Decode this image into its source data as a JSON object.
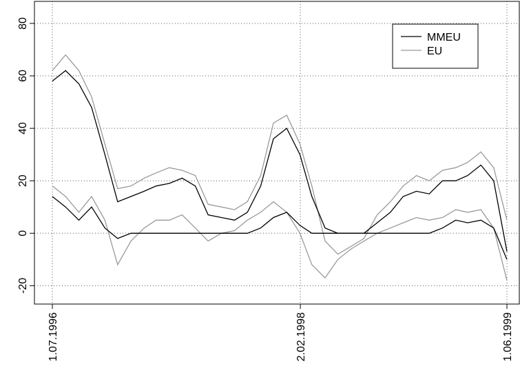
{
  "chart_data": {
    "type": "band-line",
    "x": [
      "01.07.1996",
      "01.08.1996",
      "01.09.1996",
      "01.10.1996",
      "01.11.1996",
      "01.12.1996",
      "01.01.1997",
      "01.02.1997",
      "01.03.1997",
      "01.04.1997",
      "01.05.1997",
      "01.06.1997",
      "01.07.1997",
      "01.08.1997",
      "01.09.1997",
      "01.10.1997",
      "01.11.1997",
      "01.12.1997",
      "01.01.1998",
      "01.02.1998",
      "01.03.1998",
      "01.04.1998",
      "01.05.1998",
      "01.06.1998",
      "01.07.1998",
      "01.08.1998",
      "01.09.1998",
      "01.10.1998",
      "01.11.1998",
      "01.12.1998",
      "01.01.1999",
      "01.02.1999",
      "01.03.1999",
      "01.04.1999",
      "01.05.1999",
      "01.06.1999"
    ],
    "series": [
      {
        "name": "MMEU",
        "color": "#000000",
        "upper": [
          58,
          62,
          57,
          48,
          30,
          12,
          14,
          16,
          18,
          19,
          21,
          18,
          7,
          6,
          5,
          8,
          18,
          36,
          40,
          30,
          14,
          2,
          0,
          0,
          0,
          4,
          8,
          14,
          16,
          15,
          20,
          20,
          22,
          26,
          20,
          -7
        ],
        "lower": [
          14,
          10,
          5,
          10,
          2,
          -2,
          0,
          0,
          0,
          0,
          0,
          0,
          0,
          0,
          0,
          0,
          2,
          6,
          8,
          3,
          0,
          0,
          0,
          0,
          0,
          0,
          0,
          0,
          0,
          0,
          2,
          5,
          4,
          5,
          2,
          -10
        ]
      },
      {
        "name": "EU",
        "color": "#999999",
        "upper": [
          62,
          68,
          62,
          52,
          34,
          17,
          18,
          21,
          23,
          25,
          24,
          22,
          11,
          10,
          9,
          12,
          22,
          42,
          45,
          34,
          18,
          -3,
          -8,
          -5,
          -2,
          7,
          12,
          18,
          22,
          20,
          24,
          25,
          27,
          31,
          25,
          5
        ],
        "lower": [
          18,
          14,
          8,
          14,
          5,
          -12,
          -3,
          2,
          5,
          5,
          7,
          2,
          -3,
          0,
          1,
          5,
          8,
          12,
          8,
          0,
          -12,
          -17,
          -10,
          -6,
          -3,
          0,
          2,
          4,
          6,
          5,
          6,
          9,
          8,
          9,
          2,
          -18
        ]
      }
    ],
    "xlim": [
      "20.05.1996",
      "30.06.1999"
    ],
    "xticks": [
      {
        "value": "01.07.1996",
        "label": "1.07.1996"
      },
      {
        "value": "02.02.1998",
        "label": "2.02.1998"
      },
      {
        "value": "01.06.1999",
        "label": "1.06.1999"
      }
    ],
    "ylim": [
      -27,
      88.4
    ],
    "yticks": [
      -20,
      0,
      20,
      40,
      60,
      80
    ],
    "grid": true,
    "legend": "top-right"
  }
}
